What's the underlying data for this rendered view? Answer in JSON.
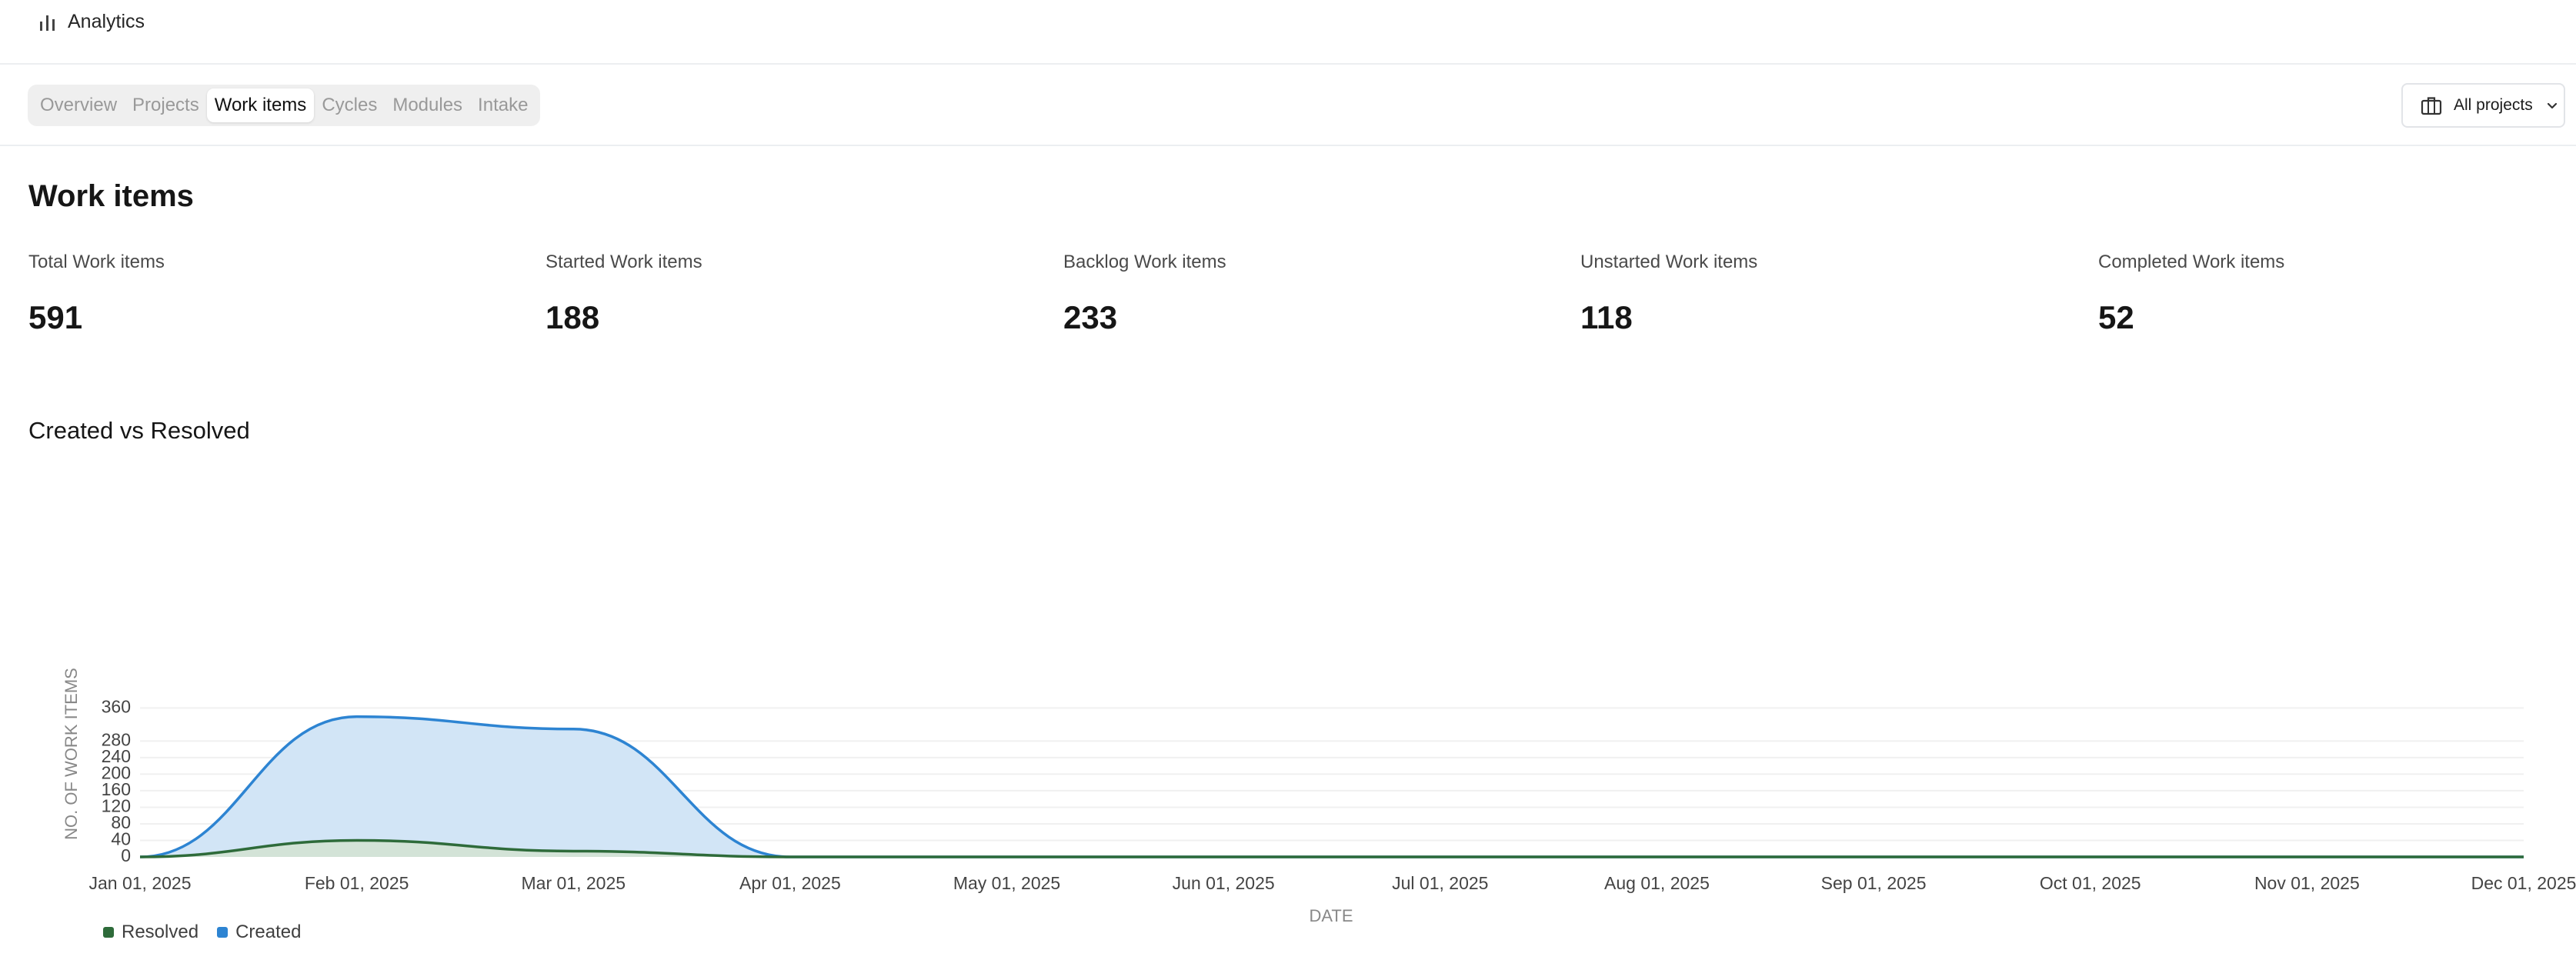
{
  "header": {
    "title": "Analytics",
    "icon": "bar-chart-icon"
  },
  "tabs": [
    {
      "label": "Overview",
      "active": false
    },
    {
      "label": "Projects",
      "active": false
    },
    {
      "label": "Work items",
      "active": true
    },
    {
      "label": "Cycles",
      "active": false
    },
    {
      "label": "Modules",
      "active": false
    },
    {
      "label": "Intake",
      "active": false
    }
  ],
  "project_filter": {
    "label": "All projects",
    "icon": "briefcase-icon"
  },
  "page": {
    "title": "Work items"
  },
  "stats": [
    {
      "label": "Total Work items",
      "value": "591"
    },
    {
      "label": "Started Work items",
      "value": "188"
    },
    {
      "label": "Backlog Work items",
      "value": "233"
    },
    {
      "label": "Unstarted Work items",
      "value": "118"
    },
    {
      "label": "Completed Work items",
      "value": "52"
    }
  ],
  "chart": {
    "title": "Created vs Resolved"
  },
  "chart_data": {
    "type": "area",
    "xlabel": "DATE",
    "ylabel": "NO. OF WORK ITEMS",
    "x": [
      "Jan 01, 2025",
      "Feb 01, 2025",
      "Mar 01, 2025",
      "Apr 01, 2025",
      "May 01, 2025",
      "Jun 01, 2025",
      "Jul 01, 2025",
      "Aug 01, 2025",
      "Sep 01, 2025",
      "Oct 01, 2025",
      "Nov 01, 2025",
      "Dec 01, 2025"
    ],
    "yticks": [
      0,
      40,
      80,
      120,
      160,
      200,
      240,
      280,
      360
    ],
    "ylim": [
      0,
      360
    ],
    "grid": true,
    "legend_position": "bottom-left",
    "series": [
      {
        "name": "Resolved",
        "color": "#2e6b3a",
        "fill": "#d3e3d5",
        "values": [
          0,
          40,
          14,
          0,
          0,
          0,
          0,
          0,
          0,
          0,
          0,
          0
        ]
      },
      {
        "name": "Created",
        "color": "#2d84d2",
        "fill": "#d0e4f6",
        "values": [
          0,
          339,
          309,
          0,
          0,
          0,
          0,
          0,
          0,
          0,
          0,
          0
        ]
      }
    ]
  }
}
